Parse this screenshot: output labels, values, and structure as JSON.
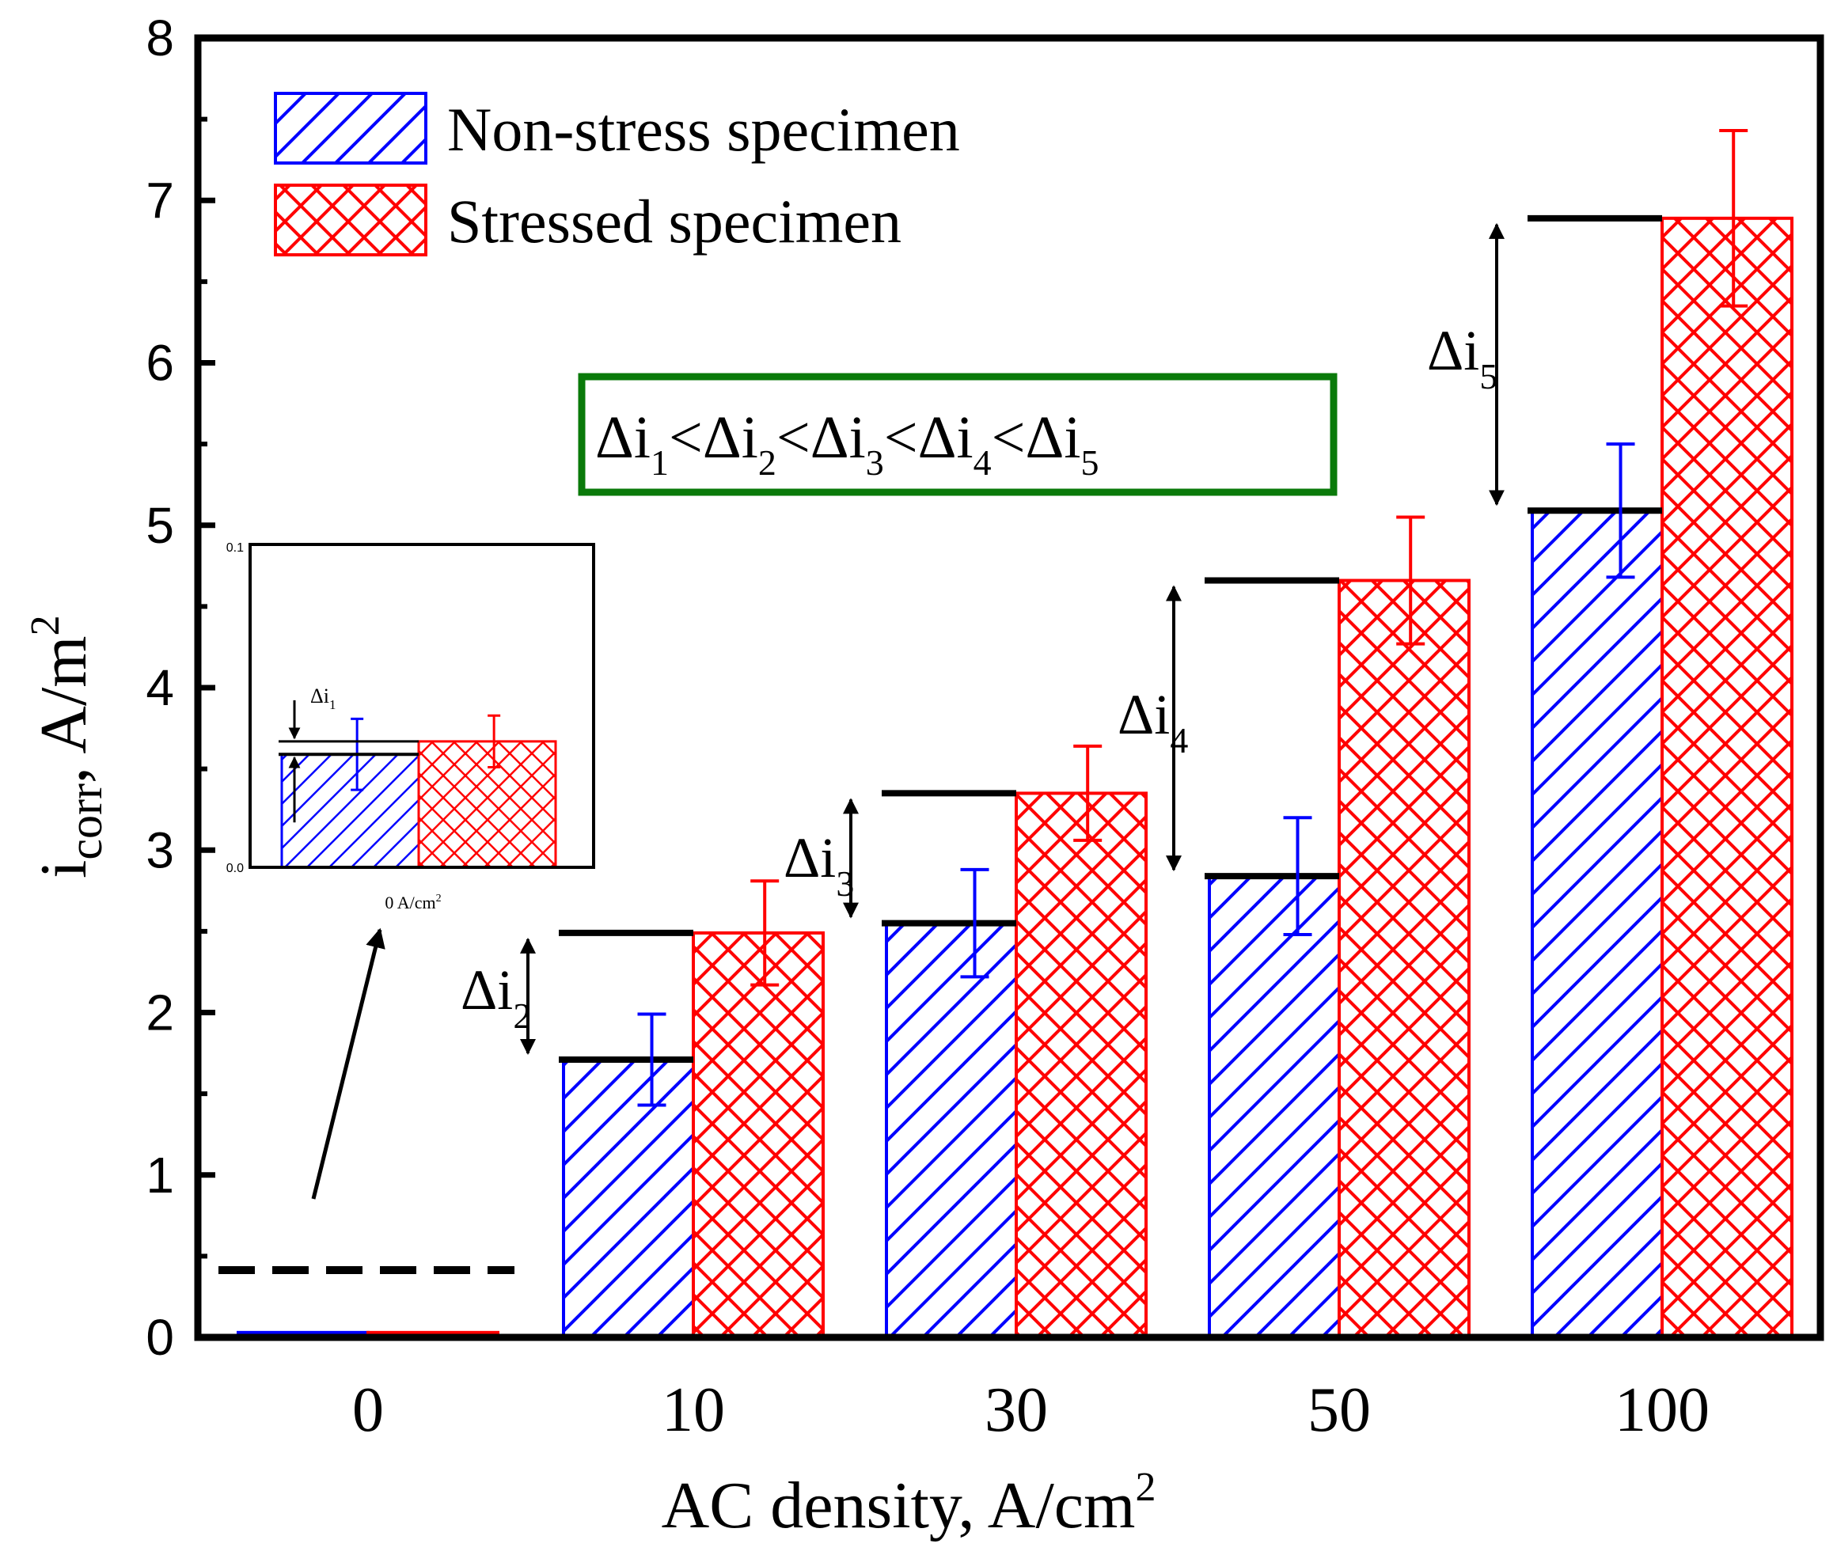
{
  "chart_data": {
    "type": "bar",
    "categories": [
      "0",
      "10",
      "30",
      "50",
      "100"
    ],
    "series": [
      {
        "name": "Non-stress specimen",
        "values": [
          0.03,
          1.71,
          2.55,
          2.84,
          5.09
        ],
        "errors": [
          0.0,
          0.28,
          0.33,
          0.36,
          0.41
        ],
        "color": "#0000ff",
        "pattern": "diagonal-hatch"
      },
      {
        "name": "Stressed specimen",
        "values": [
          0.03,
          2.49,
          3.35,
          4.66,
          6.89
        ],
        "errors": [
          0.0,
          0.32,
          0.29,
          0.39,
          0.54
        ],
        "color": "#ff0000",
        "pattern": "crosshatch"
      }
    ],
    "xlabel": "AC density, A/cm",
    "xlabel_sup": "2",
    "ylabel": "i",
    "ylabel_sub": "corr",
    "ylabel_unit": ", A/m",
    "ylabel_sup": "2",
    "ylim": [
      0,
      8
    ],
    "yticks": [
      "0",
      "1",
      "2",
      "3",
      "4",
      "5",
      "6",
      "7",
      "8"
    ],
    "grid": false,
    "legend_position": "top-left",
    "annotation_box": {
      "parts": [
        {
          "base": "Δi",
          "sub": "1"
        },
        {
          "base": "Δi",
          "sub": "2"
        },
        {
          "base": "Δi",
          "sub": "3"
        },
        {
          "base": "Δi",
          "sub": "4"
        },
        {
          "base": "Δi",
          "sub": "5"
        }
      ],
      "separator": "<",
      "border_color": "#0a7a0a"
    },
    "delta_labels": [
      {
        "base": "Δi",
        "sub": "2"
      },
      {
        "base": "Δi",
        "sub": "3"
      },
      {
        "base": "Δi",
        "sub": "4"
      },
      {
        "base": "Δi",
        "sub": "5"
      }
    ],
    "inset": {
      "ylim": [
        0.0,
        0.1
      ],
      "ytick_top": "0.1",
      "ytick_bottom": "0.0",
      "xlabel": "0 A/cm",
      "xlabel_sup": "2",
      "values": [
        0.035,
        0.039
      ],
      "errors": [
        0.011,
        0.008
      ],
      "delta_label": {
        "base": "Δi",
        "sub": "1"
      }
    }
  }
}
